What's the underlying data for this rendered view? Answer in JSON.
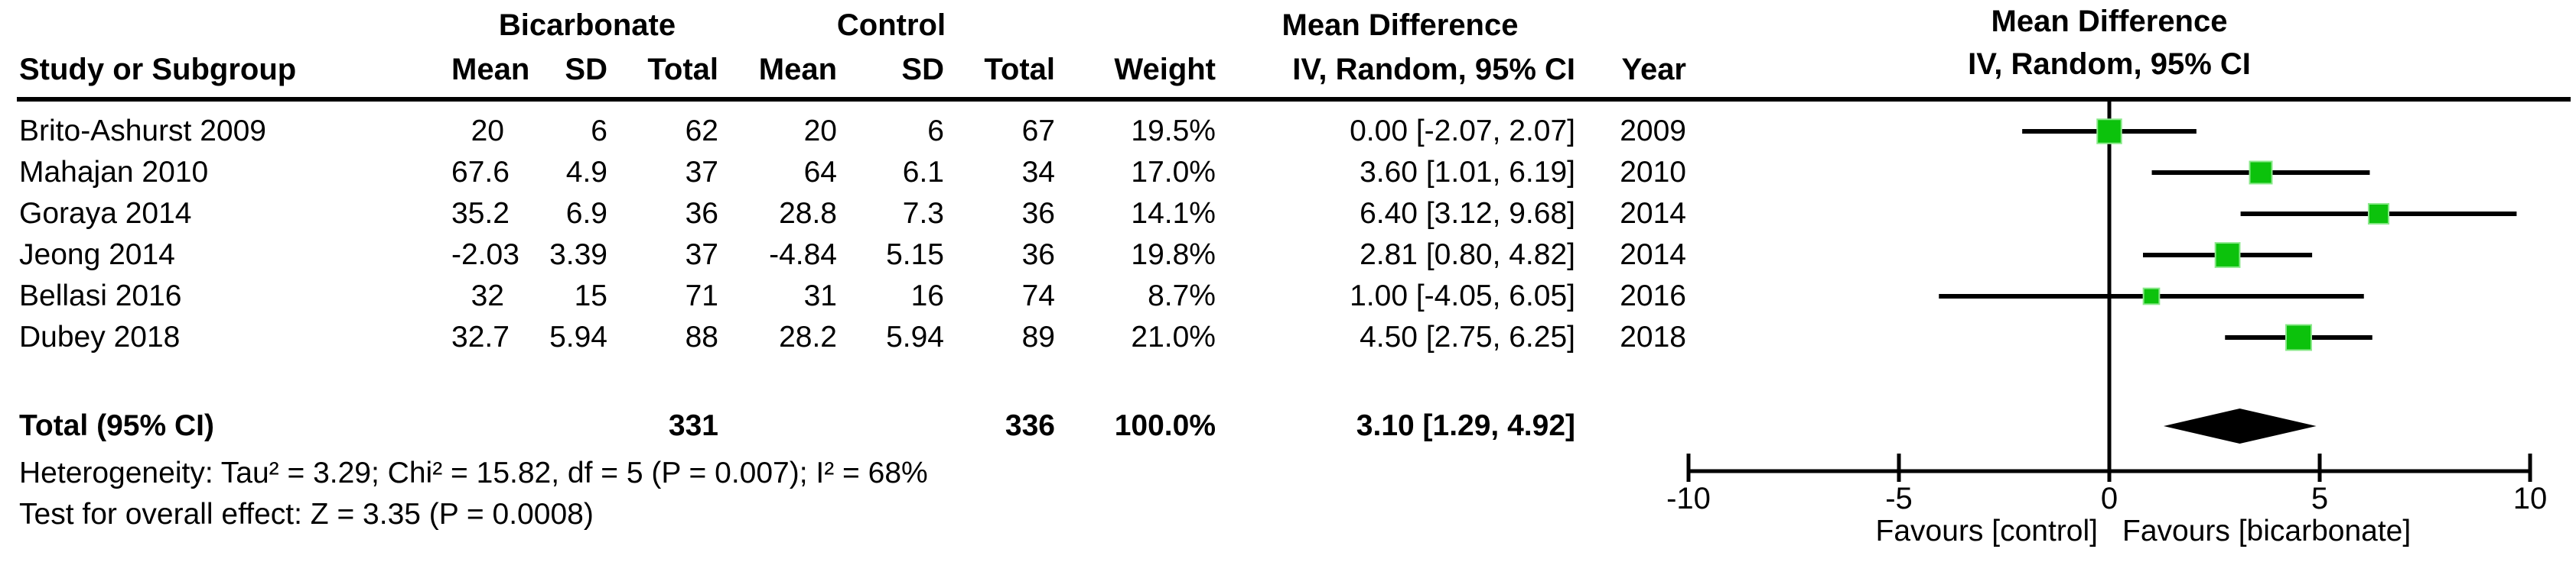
{
  "table": {
    "group1_label": "Bicarbonate",
    "group2_label": "Control",
    "effect_label_line1": "Mean Difference",
    "effect_label_line2": "IV, Random, 95% CI",
    "col_headers": {
      "study": "Study or Subgroup",
      "mean": "Mean",
      "sd": "SD",
      "total": "Total",
      "weight": "Weight",
      "ci": "IV, Random, 95% CI",
      "year": "Year"
    },
    "rows": [
      {
        "study": "Brito-Ashurst 2009",
        "mean1": "20",
        "sd1": "6",
        "total1": "62",
        "mean2": "20",
        "sd2": "6",
        "total2": "67",
        "weight": "19.5%",
        "ci": "0.00 [-2.07, 2.07]",
        "year": "2009"
      },
      {
        "study": "Mahajan 2010",
        "mean1": "67.6",
        "sd1": "4.9",
        "total1": "37",
        "mean2": "64",
        "sd2": "6.1",
        "total2": "34",
        "weight": "17.0%",
        "ci": "3.60 [1.01, 6.19]",
        "year": "2010"
      },
      {
        "study": "Goraya 2014",
        "mean1": "35.2",
        "sd1": "6.9",
        "total1": "36",
        "mean2": "28.8",
        "sd2": "7.3",
        "total2": "36",
        "weight": "14.1%",
        "ci": "6.40 [3.12, 9.68]",
        "year": "2014"
      },
      {
        "study": "Jeong 2014",
        "mean1": "-2.03",
        "sd1": "3.39",
        "total1": "37",
        "mean2": "-4.84",
        "sd2": "5.15",
        "total2": "36",
        "weight": "19.8%",
        "ci": "2.81 [0.80, 4.82]",
        "year": "2014"
      },
      {
        "study": "Bellasi 2016",
        "mean1": "32",
        "sd1": "15",
        "total1": "71",
        "mean2": "31",
        "sd2": "16",
        "total2": "74",
        "weight": "8.7%",
        "ci": "1.00 [-4.05, 6.05]",
        "year": "2016"
      },
      {
        "study": "Dubey 2018",
        "mean1": "32.7",
        "sd1": "5.94",
        "total1": "88",
        "mean2": "28.2",
        "sd2": "5.94",
        "total2": "89",
        "weight": "21.0%",
        "ci": "4.50 [2.75, 6.25]",
        "year": "2018"
      }
    ],
    "total_row": {
      "label": "Total (95% CI)",
      "total1": "331",
      "total2": "336",
      "weight": "100.0%",
      "ci": "3.10 [1.29, 4.92]"
    },
    "heterogeneity": "Heterogeneity: Tau² = 3.29; Chi² = 15.82, df = 5 (P = 0.007); I² = 68%",
    "overall_effect": "Test for overall effect: Z = 3.35 (P = 0.0008)"
  },
  "plot": {
    "header_line1": "Mean Difference",
    "header_line2": "IV, Random, 95% CI",
    "favours_left": "Favours [control]",
    "favours_right": "Favours [bicarbonate]",
    "marker_color": "#0CC20C",
    "marker_border_color": "#8AE88A",
    "line_color": "#000000"
  },
  "chart_data": {
    "type": "forest",
    "title": "Mean Difference IV, Random, 95% CI — Bicarbonate vs Control",
    "xlim": [
      -10,
      10
    ],
    "x_ticks": [
      -10,
      -5,
      0,
      5,
      10
    ],
    "studies": [
      {
        "name": "Brito-Ashurst 2009",
        "md": 0.0,
        "lo": -2.07,
        "hi": 2.07,
        "weight": 19.5,
        "year": 2009
      },
      {
        "name": "Mahajan 2010",
        "md": 3.6,
        "lo": 1.01,
        "hi": 6.19,
        "weight": 17.0,
        "year": 2010
      },
      {
        "name": "Goraya 2014",
        "md": 6.4,
        "lo": 3.12,
        "hi": 9.68,
        "weight": 14.1,
        "year": 2014
      },
      {
        "name": "Jeong 2014",
        "md": 2.81,
        "lo": 0.8,
        "hi": 4.82,
        "weight": 19.8,
        "year": 2014
      },
      {
        "name": "Bellasi 2016",
        "md": 1.0,
        "lo": -4.05,
        "hi": 6.05,
        "weight": 8.7,
        "year": 2016
      },
      {
        "name": "Dubey 2018",
        "md": 4.5,
        "lo": 2.75,
        "hi": 6.25,
        "weight": 21.0,
        "year": 2018
      }
    ],
    "total": {
      "md": 3.1,
      "lo": 1.29,
      "hi": 4.92,
      "weight": 100.0
    }
  }
}
